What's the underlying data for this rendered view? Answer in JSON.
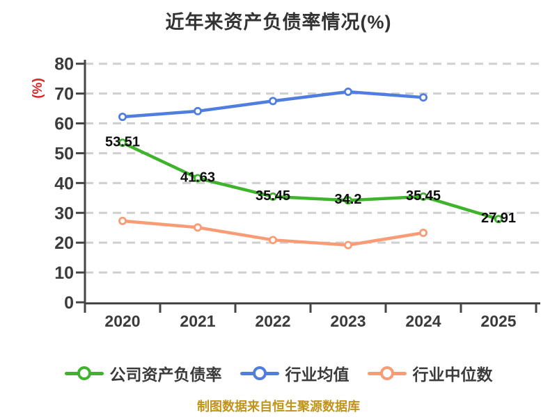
{
  "chart_data": {
    "type": "line",
    "title": "近年来资产负债率情况(%)",
    "ylabel": "(%)",
    "xlabel": "",
    "categories": [
      "2020",
      "2021",
      "2022",
      "2023",
      "2024",
      "2025"
    ],
    "ylim": [
      0,
      80
    ],
    "yticks": [
      0,
      10,
      20,
      30,
      40,
      50,
      60,
      70,
      80
    ],
    "grid": "horizontal-dashed",
    "legend_position": "bottom",
    "series": [
      {
        "name": "公司资产负债率",
        "color": "#3eb32b",
        "values": [
          53.51,
          41.63,
          35.45,
          34.2,
          35.45,
          27.91
        ],
        "data_labels": [
          "53.51",
          "41.63",
          "35.45",
          "34.2",
          "35.45",
          "27.91"
        ]
      },
      {
        "name": "行业均值",
        "color": "#4f7ee0",
        "values": [
          62.2,
          64.1,
          67.5,
          70.6,
          68.7,
          null
        ],
        "data_labels": null
      },
      {
        "name": "行业中位数",
        "color": "#f99c75",
        "values": [
          27.3,
          25.1,
          20.9,
          19.2,
          23.3,
          null
        ],
        "data_labels": null
      }
    ],
    "footnote": "制图数据来自恒生聚源数据库",
    "colors": {
      "title_text": "#333333",
      "axis_text": "#3b3b3b",
      "axis_line": "#454545",
      "gridline": "#cfcfcf",
      "data_label_text": "#0d0d0d",
      "y_unit_label": "#e02222",
      "footnote_text": "#c0941c",
      "marker_fill": "#ffffff"
    }
  }
}
